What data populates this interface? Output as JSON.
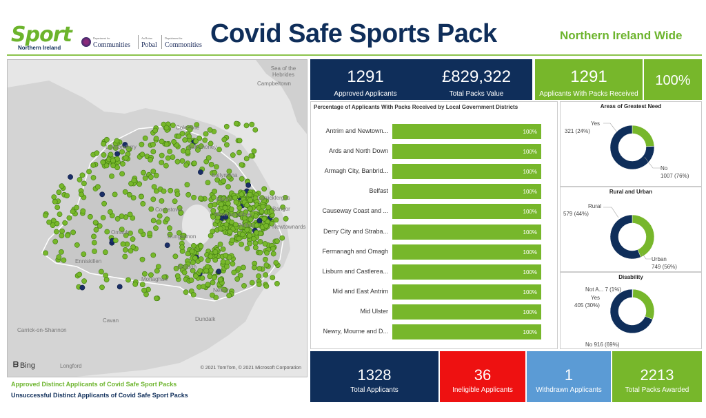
{
  "header": {
    "logo_word": "Sport",
    "logo_sub": "Northern Ireland",
    "partners": [
      {
        "tiny": "Department for",
        "name": "Communities"
      },
      {
        "tiny": "An Roinn",
        "name": "Pobal"
      },
      {
        "tiny": "Depairtment fur",
        "name": "Commonities"
      }
    ],
    "title": "Covid Safe Sports Pack",
    "region": "Northern Ireland Wide"
  },
  "map": {
    "labels": {
      "sea": "Sea of the Hebrides",
      "campbeltown": "Campbeltown",
      "coleraine": "Coleraine",
      "ballymoney": "Ballymoney",
      "londonderry": "Londonderry",
      "ballymena": "Ballymena",
      "carrickfergus": "Carrickfergus",
      "antrim": "Antrim",
      "newtownabbey": "Newtownabbey",
      "bangor": "Bangor",
      "belfast": "Belfast",
      "newtownards": "Newtownards",
      "cookstown": "Cookstown",
      "omagh": "Omagh",
      "dungannon": "Dungannon",
      "enniskillen": "Enniskillen",
      "armagh": "Armagh",
      "monaghan": "Monaghan",
      "newry": "Newry",
      "dundalk": "Dundalk",
      "cavan": "Cavan",
      "carrick": "Carrick-on-Shannon",
      "longford": "Longford"
    },
    "bing": "Bing",
    "copyright": "© 2021 TomTom, © 2021 Microsoft Corporation",
    "colors": {
      "approved": "#77b72b",
      "unsuccessful": "#1a2e66"
    }
  },
  "legend": {
    "approved": "Approved Distinct Applicants of Covid Safe Sport Packs",
    "unsuccessful": "Unsuccessful Distinct Applicants of Covid Safe Sport Packs"
  },
  "kpis_top": [
    {
      "value": "1291",
      "label": "Approved Applicants"
    },
    {
      "value": "£829,322",
      "label": "Total Packs Value"
    },
    {
      "value": "1291",
      "label": "Applicants With Packs Received"
    },
    {
      "value": "100%",
      "label": ""
    }
  ],
  "kpis_bottom": [
    {
      "value": "1328",
      "label": "Total Applicants"
    },
    {
      "value": "36",
      "label": "Ineligible Applicants"
    },
    {
      "value": "1",
      "label": "Withdrawn Applicants"
    },
    {
      "value": "2213",
      "label": "Total Packs Awarded"
    }
  ],
  "chart_data": [
    {
      "type": "bar",
      "title": "Percentage of Applicants With Packs Received by Local Government Districts",
      "categories": [
        "Antrim and Newtown...",
        "Ards and North Down",
        "Armagh City, Banbrid...",
        "Belfast",
        "Causeway Coast and ...",
        "Derry City and Straba...",
        "Fermanagh and Omagh",
        "Lisburn and Castlerea...",
        "Mid and East Antrim",
        "Mid Ulster",
        "Newry, Mourne and D..."
      ],
      "values": [
        100,
        100,
        100,
        100,
        100,
        100,
        100,
        100,
        100,
        100,
        100
      ],
      "value_labels": [
        "100%",
        "100%",
        "100%",
        "100%",
        "100%",
        "100%",
        "100%",
        "100%",
        "100%",
        "100%",
        "100%"
      ],
      "xlim": [
        0,
        100
      ],
      "color": "#77b72b"
    },
    {
      "type": "pie",
      "title": "Areas of Greatest Need",
      "slices": [
        {
          "name": "Yes",
          "value": 321,
          "label": "321 (24%)",
          "color": "#77b72b"
        },
        {
          "name": "No",
          "value": 1007,
          "label": "1007 (76%)",
          "color": "#0f2e5a"
        }
      ]
    },
    {
      "type": "pie",
      "title": "Rural and Urban",
      "slices": [
        {
          "name": "Rural",
          "value": 579,
          "label": "579 (44%)",
          "color": "#77b72b"
        },
        {
          "name": "Urban",
          "value": 749,
          "label": "749 (56%)",
          "color": "#0f2e5a"
        }
      ]
    },
    {
      "type": "pie",
      "title": "Disability",
      "slices": [
        {
          "name": "Not A...",
          "value": 7,
          "label": "7 (1%)",
          "color": "#5b9bd5"
        },
        {
          "name": "Yes",
          "value": 405,
          "label": "405 (30%)",
          "color": "#77b72b"
        },
        {
          "name": "No",
          "value": 916,
          "label": "916 (69%)",
          "color": "#0f2e5a"
        }
      ]
    }
  ]
}
